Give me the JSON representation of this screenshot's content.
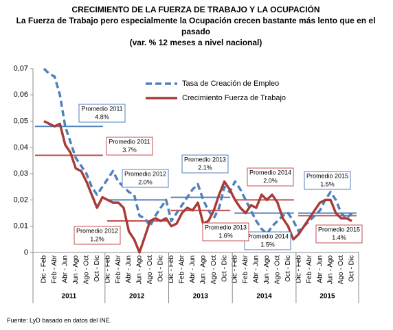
{
  "chart_data": {
    "type": "line",
    "title": "CRECIMIENTO DE LA FUERZA DE TRABAJO Y LA OCUPACIÓN",
    "subtitle": "La Fuerza de Trabajo pero especialmente la Ocupación crecen bastante más lento que en el pasado",
    "note": "(var. % 12 meses a nivel nacional)",
    "source": "Fuente: LyD basado en datos del INE.",
    "categories": [
      "Dic - Feb",
      null,
      "Feb - Abr",
      null,
      "Abr - Jun",
      null,
      "Jun - Ago",
      null,
      "Ago - Oct",
      null,
      "Oct - Dic",
      null,
      "Dic - Feb",
      null,
      "Feb - Abr",
      null,
      "Abr - Jun",
      null,
      "Jun - Ago",
      null,
      "Ago - Oct",
      null,
      "Oct - Dic",
      null,
      "Dic - Feb",
      null,
      "Feb - Abr",
      null,
      "Abr - Jun",
      null,
      "Jun - Ago",
      null,
      "Ago - Oct",
      null,
      "Oct - Dic",
      null,
      "Dic - Feb",
      null,
      "Feb - Abr",
      null,
      "Abr - Jun",
      null,
      "Jun - Ago",
      null,
      "Ago - Oct",
      null,
      "Oct - Dic",
      null,
      "Dic - Feb",
      null,
      "Feb - Abr",
      null,
      "Abr - Jun",
      null,
      "Jun - Ago",
      null,
      "Ago - Oct",
      null,
      "Oct - Dic"
    ],
    "groups": [
      {
        "label": "2011",
        "count": 12
      },
      {
        "label": "2012",
        "count": 12
      },
      {
        "label": "2013",
        "count": 12
      },
      {
        "label": "2014",
        "count": 12
      },
      {
        "label": "2015",
        "count": 11
      }
    ],
    "ylim": [
      0,
      0.07
    ],
    "yticks": [
      0,
      {
        "value": 0.01,
        "label": "0,01"
      },
      {
        "value": 0.02,
        "label": "0,02"
      },
      {
        "value": 0.03,
        "label": "0,03"
      },
      {
        "value": 0.04,
        "label": "0,04"
      },
      {
        "value": 0.05,
        "label": "0,05"
      },
      {
        "value": 0.06,
        "label": "0,06"
      },
      {
        "value": 0.07,
        "label": "0,07"
      }
    ],
    "legend": "upper right",
    "series": [
      {
        "name": "Tasa de Creación de Empleo",
        "color": "#4f81bd",
        "dashed": true,
        "values": [
          0.07,
          0.068,
          0.067,
          0.06,
          0.048,
          0.042,
          0.036,
          0.033,
          0.03,
          0.025,
          0.022,
          0.025,
          0.028,
          0.031,
          0.027,
          0.025,
          0.023,
          0.022,
          0.014,
          0.013,
          0.01,
          0.014,
          0.017,
          0.02,
          0.012,
          0.015,
          0.018,
          0.021,
          0.024,
          0.026,
          0.02,
          0.016,
          0.013,
          0.017,
          0.025,
          0.023,
          0.027,
          0.024,
          0.02,
          0.016,
          0.012,
          0.009,
          0.007,
          0.01,
          0.012,
          0.014,
          0.015,
          0.012,
          0.008,
          0.01,
          0.012,
          0.014,
          0.016,
          0.02,
          0.023,
          0.02,
          0.015,
          0.013,
          0.015
        ],
        "averages": {
          "labels": [
            "Promedio 2011",
            "Promedio 2012",
            "Promedio 2013",
            "Promedio 2014",
            "Promedio 2015"
          ],
          "values": [
            0.048,
            0.02,
            0.021,
            0.015,
            0.015
          ],
          "value_labels": [
            "4.8%",
            "2.0%",
            "2.1%",
            "1.5%",
            "1.5%"
          ]
        }
      },
      {
        "name": "Crecimiento Fuerza de Trabajo",
        "color": "#a93b38",
        "dashed": false,
        "values": [
          0.05,
          0.049,
          0.048,
          0.049,
          0.041,
          0.038,
          0.032,
          0.031,
          0.027,
          0.022,
          0.017,
          0.021,
          0.02,
          0.019,
          0.019,
          0.017,
          0.008,
          0.005,
          0.0,
          0.006,
          0.012,
          0.013,
          0.012,
          0.013,
          0.01,
          0.011,
          0.015,
          0.017,
          0.016,
          0.019,
          0.011,
          0.012,
          0.016,
          0.022,
          0.027,
          0.024,
          0.02,
          0.017,
          0.015,
          0.018,
          0.017,
          0.022,
          0.02,
          0.022,
          0.019,
          0.013,
          0.01,
          0.005,
          0.007,
          0.01,
          0.013,
          0.016,
          0.019,
          0.02,
          0.02,
          0.015,
          0.013,
          0.013,
          0.012
        ],
        "averages": {
          "labels": [
            "Promedio 2011",
            "Promedio 2012",
            "Promedio 2013",
            "Promedio 2014",
            "Promedio 2015"
          ],
          "values": [
            0.037,
            0.012,
            0.016,
            0.02,
            0.014
          ],
          "value_labels": [
            "3.7%",
            "1.2%",
            "1.6%",
            "2.0%",
            "1.4%"
          ]
        }
      }
    ]
  }
}
